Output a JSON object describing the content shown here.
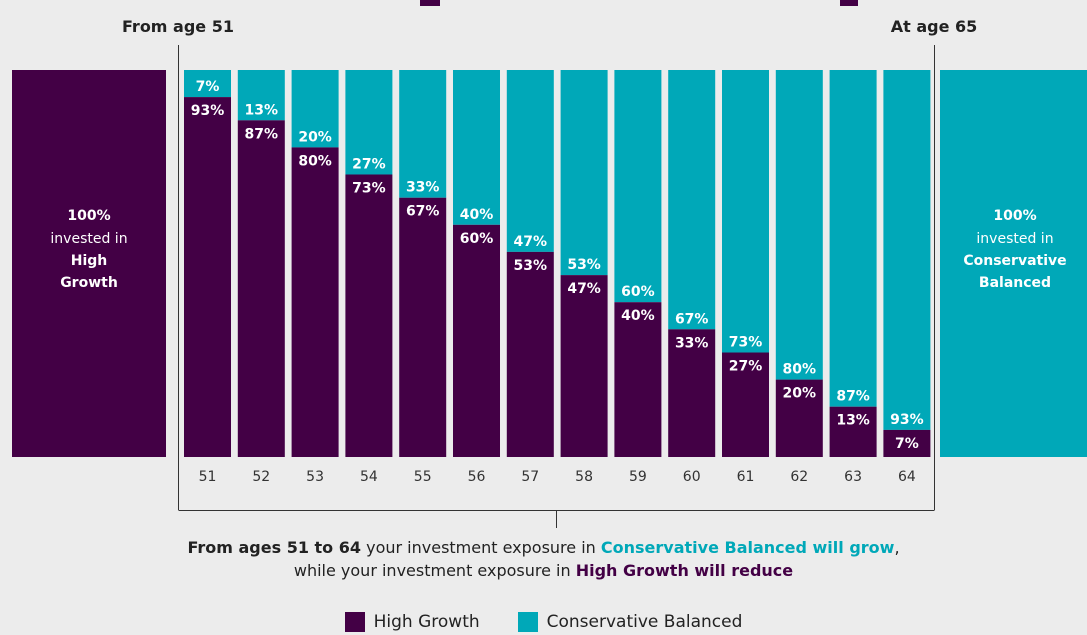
{
  "header": {
    "from_label": "From age 51",
    "at_label": "At age 65"
  },
  "left_panel": {
    "pct": "100%",
    "line1": "invested in",
    "line2": "High",
    "line3": "Growth"
  },
  "right_panel": {
    "pct": "100%",
    "line1": "invested in",
    "line2": "Conservative",
    "line3": "Balanced"
  },
  "caption": {
    "line1_bold": "From ages 51 to 64",
    "line1_mid": " your investment exposure in ",
    "line1_accent": "Conservative Balanced will grow",
    "line1_end": ",",
    "line2_start": "while your investment exposure in ",
    "line2_accent": "High Growth will reduce"
  },
  "legend": [
    {
      "label": "High Growth",
      "color": "#430045"
    },
    {
      "label": "Conservative Balanced",
      "color": "#00a8b8"
    }
  ],
  "colors": {
    "high_growth": "#430045",
    "conservative": "#00a8b8",
    "label_white": "#ffffff"
  },
  "chart_data": {
    "type": "bar",
    "stacked": true,
    "categories": [
      "51",
      "52",
      "53",
      "54",
      "55",
      "56",
      "57",
      "58",
      "59",
      "60",
      "61",
      "62",
      "63",
      "64"
    ],
    "series": [
      {
        "name": "High Growth",
        "values": [
          93,
          87,
          80,
          73,
          67,
          60,
          53,
          47,
          40,
          33,
          27,
          20,
          13,
          7
        ]
      },
      {
        "name": "Conservative Balanced",
        "values": [
          7,
          13,
          20,
          27,
          33,
          40,
          47,
          53,
          60,
          67,
          73,
          80,
          87,
          93
        ]
      }
    ],
    "ylim": [
      0,
      100
    ],
    "legend_position": "bottom"
  }
}
